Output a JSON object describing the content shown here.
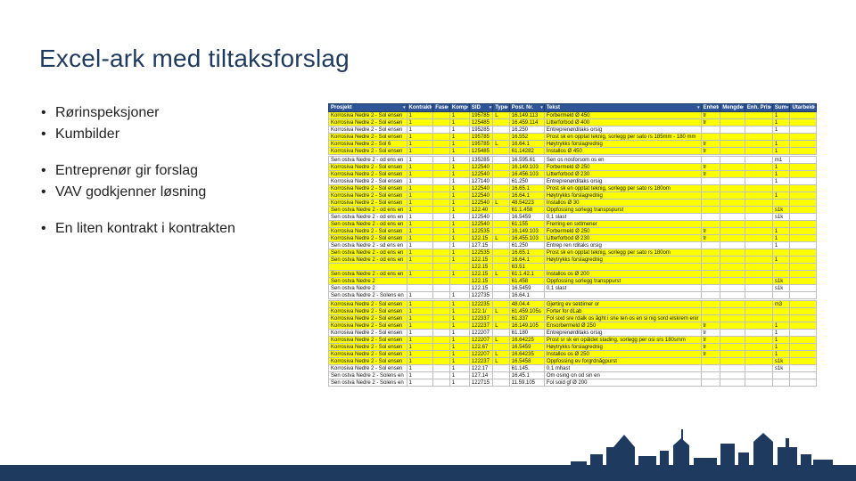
{
  "title": "Excel-ark med tiltaksforslag",
  "colors": {
    "title": "#1f3a5f",
    "header_bg": "#2f5597",
    "header_fg": "#ffffff",
    "row_highlight": "#ffff00",
    "grid": "#bfbfbf",
    "bar": "#1f3a5f"
  },
  "bullet_groups": [
    [
      "Rørinspeksjoner",
      "Kumbilder"
    ],
    [
      "Entreprenør gir forslag",
      "VAV godkjenner løsning"
    ],
    [
      "En liten kontrakt i kontrakten"
    ]
  ],
  "table": {
    "columns": [
      "Prosjekt",
      "Kontrakt",
      "Fase",
      "Komp",
      "SID",
      "Type",
      "Post. Nr.",
      "Tekst",
      "Enhet",
      "Mengde",
      "Enh. Pris",
      "Sum",
      "Utarbeid"
    ],
    "col_widths": [
      "90px",
      "14px",
      "14px",
      "14px",
      "30px",
      "16px",
      "42px",
      "120px",
      "16px",
      "22px",
      "30px",
      "24px",
      "30px"
    ],
    "rows": [
      {
        "hl": true,
        "c": [
          "Korrosiva Nedre 2 - Sol ensen",
          "1",
          "",
          "1",
          "195785",
          "L",
          "16.149.113",
          "Forbermeld Ø 450",
          "tr",
          "",
          "",
          "1",
          ""
        ]
      },
      {
        "hl": true,
        "c": [
          "Korrosiva Nedre 2 - Sol ensen",
          "1",
          "",
          "1",
          "125485",
          "",
          "16.459.114",
          "Litterforbod Ø 400",
          "tr",
          "",
          "",
          "1",
          ""
        ]
      },
      {
        "hl": false,
        "c": [
          "Korrosiva Nedre 2 - Sol ensen",
          "1",
          "",
          "1",
          "195285",
          "",
          "16.250",
          "Entreprenørditaks orsig",
          "",
          "",
          "",
          "1",
          ""
        ]
      },
      {
        "hl": true,
        "c": [
          "Korrosiva Nedre 2 - Sol ensen",
          "1",
          "",
          "1",
          "195785",
          "",
          "16.552",
          "Prost sk en opptat teknig, sorlegg per sato rs 185mm - 180 mm",
          "",
          "",
          "",
          "",
          ""
        ]
      },
      {
        "hl": true,
        "c": [
          "Korrosiva Nedre 2 - Sol 6",
          "1",
          "",
          "1",
          "195785",
          "L",
          "16.64.1",
          "Høytrykks forslagrednig",
          "tr",
          "",
          "",
          "1",
          ""
        ]
      },
      {
        "hl": true,
        "c": [
          "Korrosiva Nedre 2 - Sol ensen",
          "1",
          "",
          "1",
          "125485",
          "",
          "61.14282",
          "Installos Ø 450",
          "tr",
          "",
          "",
          "1",
          ""
        ]
      },
      {
        "sep": true,
        "c": [
          "",
          "",
          "",
          "",
          "",
          "",
          "",
          "",
          "",
          "",
          "",
          "",
          ""
        ]
      },
      {
        "hl": false,
        "c": [
          "Sen ostva Nedre 2 - od ens en",
          "1",
          "",
          "1",
          "135285",
          "",
          "16.595.61",
          "Sen os nosforsom os en",
          "",
          "",
          "",
          "m1",
          ""
        ]
      },
      {
        "hl": true,
        "c": [
          "Korrosiva Nedre 2 - Sol ensen",
          "1",
          "",
          "1",
          "122540",
          "",
          "16.149.103",
          "Forbermeld Ø 250",
          "tr",
          "",
          "",
          "1",
          ""
        ]
      },
      {
        "hl": true,
        "c": [
          "Korrosiva Nedre 2 - Sol ensen",
          "1",
          "",
          "1",
          "122540",
          "",
          "16.456.103",
          "Litterforbod Ø 230",
          "tr",
          "",
          "",
          "1",
          ""
        ]
      },
      {
        "hl": false,
        "c": [
          "Korrosiva Nedre 2 - Sol ensen",
          "1",
          "",
          "1",
          "127140",
          "",
          "61.250",
          "Entreprenørditaks orsig",
          "",
          "",
          "",
          "1",
          ""
        ]
      },
      {
        "hl": true,
        "c": [
          "Korrosiva Nedre 2 - Sol ensen",
          "1",
          "",
          "1",
          "122540",
          "",
          "16.65.1",
          "Prost sk en opptat teknig, sorlegg per sato rs 180om",
          "",
          "",
          "",
          "",
          ""
        ]
      },
      {
        "hl": true,
        "c": [
          "Korrosiva Nedre 2 - Sol ensen",
          "1",
          "",
          "1",
          "122540",
          "",
          "16.64.1",
          "Høytrykks forslagrednig",
          "",
          "",
          "",
          "1",
          ""
        ]
      },
      {
        "hl": true,
        "c": [
          "Korrosiva Nedre 2 - Sol ensen",
          "1",
          "",
          "1",
          "122540",
          "L",
          "48.54223",
          "Installos Ø 30",
          "",
          "",
          "",
          "",
          ""
        ]
      },
      {
        "hl": true,
        "c": [
          "Sen ostva Nedre 2 - od ens en",
          "1",
          "",
          "1",
          "122.40",
          "",
          "61.1.458",
          "Oppfossing sorlegg transpspurst",
          "",
          "",
          "",
          "s1k",
          ""
        ]
      },
      {
        "hl": false,
        "c": [
          "Sen ostva Nedre 2 - od ens en",
          "1",
          "",
          "1",
          "122540",
          "",
          "16.5459",
          "0,1 slast",
          "",
          "",
          "",
          "s1k",
          ""
        ]
      },
      {
        "hl": true,
        "c": [
          "Sen ostva Nedre 2 - od ens en",
          "1",
          "",
          "1",
          "122540",
          "",
          "61.155",
          "Frerring en sxtlmener",
          "",
          "",
          "",
          "",
          ""
        ]
      },
      {
        "hl": true,
        "c": [
          "Korrosiva Nedre 2 - Sol ensen",
          "1",
          "",
          "1",
          "122535",
          "",
          "16.149.103",
          "Forbermeld Ø 250",
          "tr",
          "",
          "",
          "1",
          ""
        ]
      },
      {
        "hl": true,
        "c": [
          "Korrosiva Nedre 2 - Sol ensen",
          "1",
          "",
          "1",
          "122.15",
          "L",
          "16.455.103",
          "Litterforbod Ø 230",
          "tr",
          "",
          "",
          "1",
          ""
        ]
      },
      {
        "hl": false,
        "c": [
          "Sen ostva Nedre 2 - sd ens en",
          "1",
          "",
          "1",
          "127.15",
          "",
          "61.250",
          "Entrep ren rditaks orsig",
          "",
          "",
          "",
          "1",
          ""
        ]
      },
      {
        "hl": true,
        "c": [
          "Sen ostva Nedre 2 - od ens en",
          "1",
          "",
          "1",
          "122535",
          "",
          "16.65.1",
          "Prost sk en opptat teknig, sorlegg per sato rs 180om",
          "",
          "",
          "",
          "",
          ""
        ]
      },
      {
        "hl": true,
        "c": [
          "Sen ostva Nedre 2 - od ens en",
          "1",
          "",
          "1",
          "122.15",
          "",
          "16.64.1",
          "Høytrykks forslagrednig",
          "",
          "",
          "",
          "1",
          ""
        ]
      },
      {
        "hl": true,
        "c": [
          "",
          "",
          "",
          "",
          "122.15",
          "",
          "63.51",
          "",
          "",
          "",
          "",
          "",
          ""
        ]
      },
      {
        "hl": true,
        "c": [
          "Sen ostva Nedre 2 - od ens en",
          "1",
          "",
          "1",
          "122.15",
          "L",
          "61.1.42.1",
          "Installos os Ø 200",
          "",
          "",
          "",
          "",
          ""
        ]
      },
      {
        "hl": true,
        "c": [
          "Sen ostva Nedre 2",
          "",
          "",
          "",
          "122.15",
          "",
          "61.458",
          "Oppfossing sorlegg transppurst",
          "",
          "",
          "",
          "s1k",
          ""
        ]
      },
      {
        "hl": false,
        "c": [
          "Sen ostva Nedre 2",
          "",
          "",
          "",
          "122.15",
          "",
          "16.5459",
          "0,1 slast",
          "",
          "",
          "",
          "s1k",
          ""
        ]
      },
      {
        "hl": false,
        "c": [
          "Sen ostva Nedre 2 - Solens en",
          "1",
          "",
          "1",
          "122735",
          "",
          "16.64.1",
          "",
          "",
          "",
          "",
          "",
          ""
        ]
      },
      {
        "sep": true,
        "c": [
          "",
          "",
          "",
          "",
          "",
          "",
          "",
          "",
          "",
          "",
          "",
          "",
          ""
        ]
      },
      {
        "hl": true,
        "c": [
          "Korrosiva Nedre 2 - Sol ensen",
          "1",
          "",
          "1",
          "122235",
          "",
          "48.04.4",
          "Gjertirg ev setdimer or",
          "",
          "",
          "",
          "m3",
          ""
        ]
      },
      {
        "hl": true,
        "c": [
          "Korrosiva Nedre 2 - Sol ensen",
          "1",
          "",
          "1",
          "122.1/",
          "L",
          "61.459.105s",
          "Forter for dLab",
          "",
          "",
          "",
          "",
          ""
        ]
      },
      {
        "hl": true,
        "c": [
          "Korrosiva Nedre 2 - Sol ensen",
          "1",
          "",
          "1",
          "122337",
          "",
          "61.337",
          "Fol sixd sre rdalk os åght i sne ten os en si nig sord elskrem enir",
          "",
          "",
          "",
          "",
          ""
        ]
      },
      {
        "hl": true,
        "c": [
          "Korrosiva Nedre 2 - Sol ensen",
          "1",
          "",
          "1",
          "122237",
          "L",
          "16.149.105",
          "Ensorbermeld Ø 250",
          "tr",
          "",
          "",
          "1",
          ""
        ]
      },
      {
        "hl": false,
        "c": [
          "Korrosiva Nedre 2 - Sol ensen",
          "1",
          "",
          "1",
          "122207",
          "",
          "61.180",
          "Entreprenørditaks orsig",
          "tr",
          "",
          "",
          "1",
          ""
        ]
      },
      {
        "hl": true,
        "c": [
          "Korrosiva Nedre 2 - Sol ensen",
          "1",
          "",
          "1",
          "122207",
          "L",
          "16.64225",
          "Prost sr sk en opåldet stading, sorlegg per osi srs  180smm",
          "tr",
          "",
          "",
          "1",
          ""
        ]
      },
      {
        "hl": true,
        "c": [
          "Korrosiva Nedre 2 - Sol ensen",
          "1",
          "",
          "1",
          "122.67",
          "",
          "16.5459",
          "Høytrykks forslagrednig",
          "tr",
          "",
          "",
          "1",
          ""
        ]
      },
      {
        "hl": true,
        "c": [
          "Korrosiva Nedre 2 - Sol ensen",
          "1",
          "",
          "1",
          "122207",
          "L",
          "16.64235",
          "Installos os Ø 250",
          "tr",
          "",
          "",
          "1",
          ""
        ]
      },
      {
        "hl": true,
        "c": [
          "Korrosiva Nedre 2 - Sol ensen",
          "1",
          "",
          "1",
          "122237",
          "L",
          "16.5458",
          "Oppfossing ev forgrdnågpurst",
          "",
          "",
          "",
          "s1k",
          ""
        ]
      },
      {
        "hl": false,
        "c": [
          "Korrosiva Nedre 2 - Sol ensen",
          "1",
          "",
          "1",
          "122.17",
          "",
          "61.145.",
          "0,1 mhast",
          "",
          "",
          "",
          "s1k",
          ""
        ]
      },
      {
        "hl": false,
        "c": [
          "Sen ostva Nedre 2 - Solens en",
          "1",
          "",
          "1",
          "127.14",
          "",
          "16.45.1",
          "Om osing on od sin en",
          "",
          "",
          "",
          "",
          ""
        ]
      },
      {
        "hl": false,
        "c": [
          "Sen ostva Nedre 2 - Solens en",
          "1",
          "",
          "1",
          "122715",
          "",
          "11.59.105",
          "Fol soid gf Ø 200",
          "",
          "",
          "",
          "",
          ""
        ]
      }
    ]
  }
}
